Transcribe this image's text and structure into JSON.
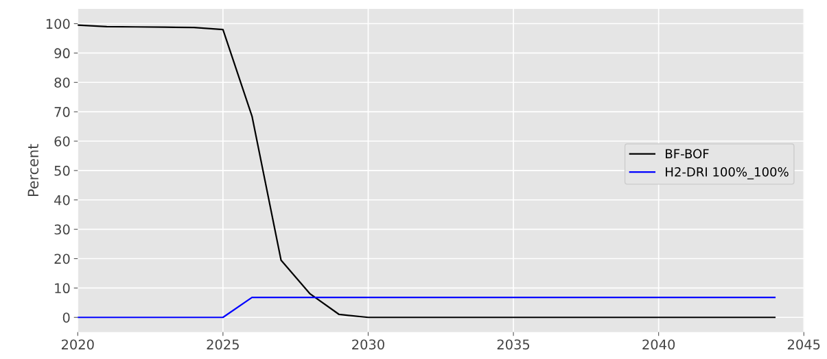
{
  "chart_data": {
    "type": "line",
    "ylabel": "Percent",
    "x": [
      2020,
      2021,
      2022,
      2023,
      2024,
      2025,
      2026,
      2027,
      2028,
      2029,
      2030,
      2031,
      2032,
      2033,
      2034,
      2035,
      2036,
      2037,
      2038,
      2039,
      2040,
      2041,
      2042,
      2043,
      2044
    ],
    "series": [
      {
        "name": "BF-BOF",
        "color": "#000000",
        "values": [
          99.5,
          99,
          98.9,
          98.8,
          98.7,
          98,
          68.5,
          19.5,
          8,
          1,
          0,
          0,
          0,
          0,
          0,
          0,
          0,
          0,
          0,
          0,
          0,
          0,
          0,
          0,
          0
        ]
      },
      {
        "name": "H2-DRI 100%_100%",
        "color": "#0000ff",
        "values": [
          0,
          0,
          0,
          0,
          0,
          0,
          6.8,
          6.8,
          6.8,
          6.8,
          6.8,
          6.8,
          6.8,
          6.8,
          6.8,
          6.8,
          6.8,
          6.8,
          6.8,
          6.8,
          6.8,
          6.8,
          6.8,
          6.8,
          6.8
        ]
      }
    ],
    "xlim": [
      2020,
      2045
    ],
    "xticks": [
      2020,
      2025,
      2030,
      2035,
      2040,
      2045
    ],
    "ylim": [
      -5,
      105
    ],
    "yticks": [
      0,
      10,
      20,
      30,
      40,
      50,
      60,
      70,
      80,
      90,
      100
    ],
    "grid": true,
    "legend": "right",
    "marker": "none",
    "line_style": "solid"
  }
}
